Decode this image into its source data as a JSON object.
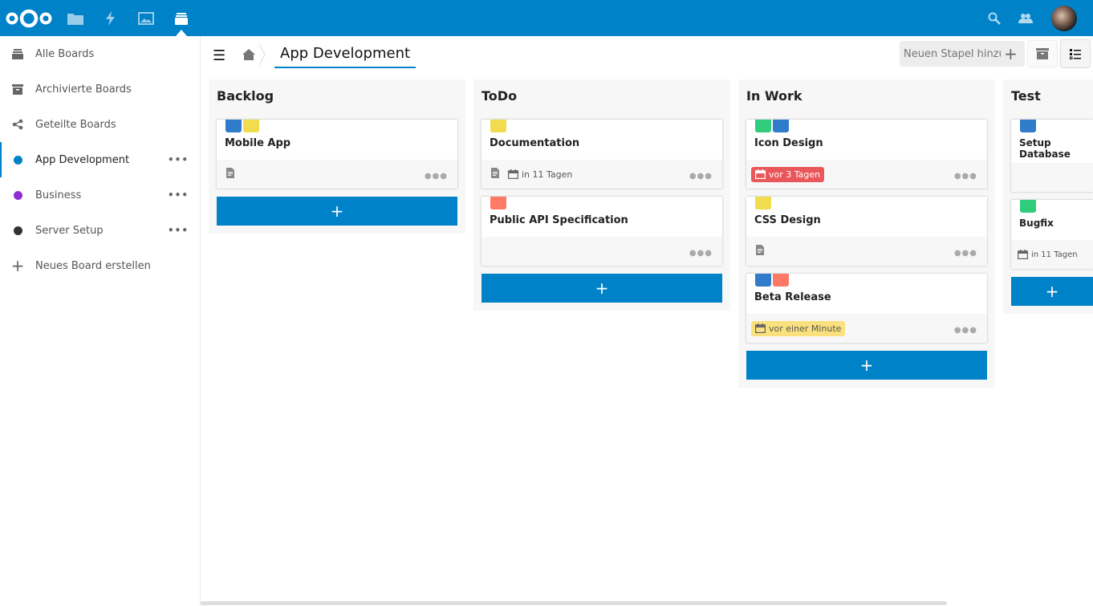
{
  "colors": {
    "primary": "#0082c9",
    "label_blue": "#317cca",
    "label_yellow": "#f0dc4e",
    "label_green": "#31cc7c",
    "label_red": "#ff7a66",
    "overdue": "#e9575a",
    "due_soon": "#fae17d"
  },
  "header": {
    "apps": [
      "files-icon",
      "activity-icon",
      "gallery-icon",
      "deck-icon"
    ],
    "right": [
      "search-icon",
      "contacts-icon",
      "avatar"
    ]
  },
  "sidebar": {
    "items": [
      {
        "label": "Alle Boards",
        "icon": "deck-icon"
      },
      {
        "label": "Archivierte Boards",
        "icon": "archive-icon"
      },
      {
        "label": "Geteilte Boards",
        "icon": "share-icon"
      },
      {
        "label": "App Development",
        "color": "#0082c9",
        "active": true
      },
      {
        "label": "Business",
        "color": "#8e2ed4"
      },
      {
        "label": "Server Setup",
        "color": "#333333"
      },
      {
        "label": "Neues Board erstellen",
        "icon": "plus-icon"
      }
    ]
  },
  "board": {
    "title": "App Development",
    "new_stack_placeholder": "Neuen Stapel hinzufügen"
  },
  "stacks": [
    {
      "title": "Backlog",
      "cards": [
        {
          "title": "Mobile App",
          "labels": [
            "#317cca",
            "#f0dc4e"
          ],
          "description": true
        }
      ]
    },
    {
      "title": "ToDo",
      "cards": [
        {
          "title": "Documentation",
          "labels": [
            "#f0dc4e"
          ],
          "description": true,
          "due": "in 11 Tagen",
          "due_state": "normal"
        },
        {
          "title": "Public API Specification",
          "labels": [
            "#ff7a66"
          ]
        }
      ]
    },
    {
      "title": "In Work",
      "cards": [
        {
          "title": "Icon Design",
          "labels": [
            "#31cc7c",
            "#317cca"
          ],
          "due": "vor 3 Tagen",
          "due_state": "red"
        },
        {
          "title": "CSS Design",
          "labels": [
            "#f0dc4e"
          ],
          "description": true
        },
        {
          "title": "Beta Release",
          "labels": [
            "#317cca",
            "#ff7a66"
          ],
          "due": "vor einer Minute",
          "due_state": "yellow"
        }
      ]
    },
    {
      "title": "Test",
      "cards": [
        {
          "title": "Setup Database",
          "labels": [
            "#317cca"
          ]
        },
        {
          "title": "Bugfix",
          "labels": [
            "#31cc7c"
          ],
          "due": "in 11 Tagen",
          "due_state": "normal"
        }
      ]
    }
  ]
}
